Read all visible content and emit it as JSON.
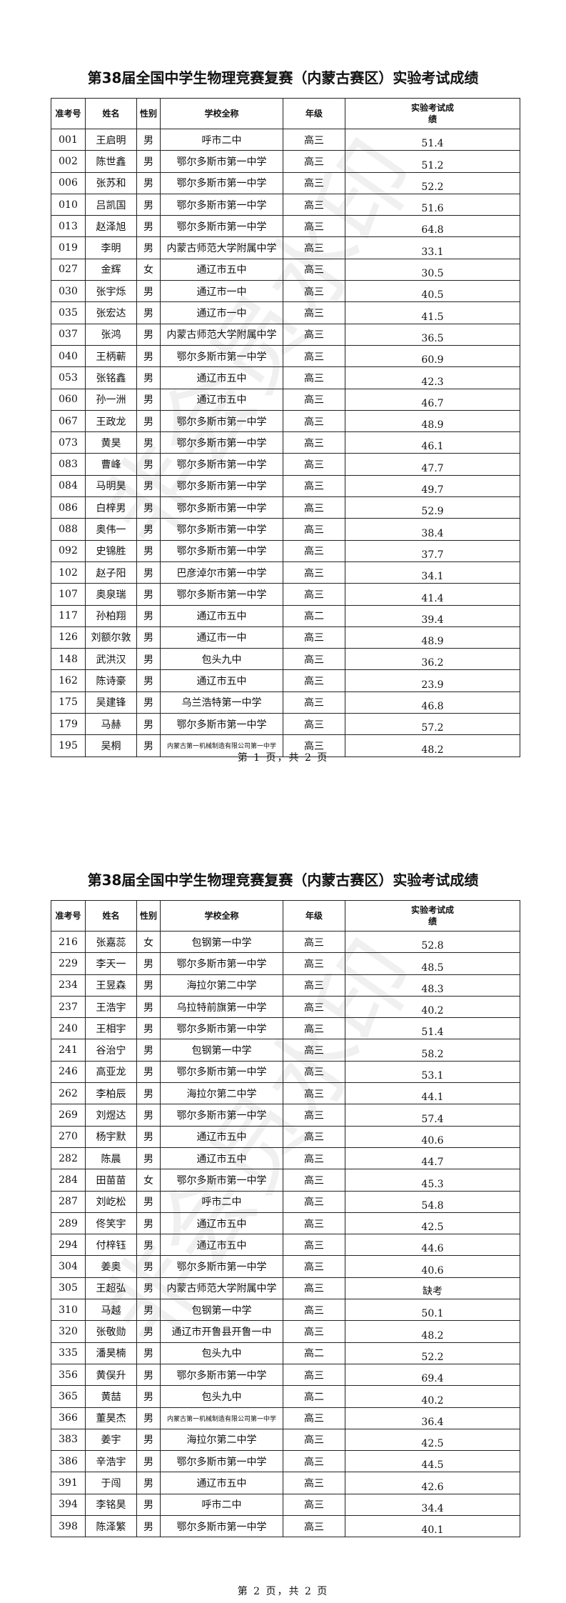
{
  "title": "第38届全国中学生物理竞赛复赛（内蒙古赛区）实验考试成绩",
  "watermark": "非会员水印",
  "headers": [
    "准考号",
    "姓名",
    "性别",
    "学校全称",
    "年级",
    "实验考试成绩"
  ],
  "pages": [
    {
      "footer": "第 1 页，共 2 页",
      "rows": [
        [
          "001",
          "王启明",
          "男",
          "呼市二中",
          "高三",
          "51.4"
        ],
        [
          "002",
          "陈世鑫",
          "男",
          "鄂尔多斯市第一中学",
          "高三",
          "51.2"
        ],
        [
          "006",
          "张苏和",
          "男",
          "鄂尔多斯市第一中学",
          "高三",
          "52.2"
        ],
        [
          "010",
          "吕凯国",
          "男",
          "鄂尔多斯市第一中学",
          "高三",
          "51.6"
        ],
        [
          "013",
          "赵泽旭",
          "男",
          "鄂尔多斯市第一中学",
          "高三",
          "64.8"
        ],
        [
          "019",
          "李明",
          "男",
          "内蒙古师范大学附属中学",
          "高三",
          "33.1"
        ],
        [
          "027",
          "金辉",
          "女",
          "通辽市五中",
          "高三",
          "30.5"
        ],
        [
          "030",
          "张宇烁",
          "男",
          "通辽市一中",
          "高三",
          "40.5"
        ],
        [
          "035",
          "张宏达",
          "男",
          "通辽市一中",
          "高三",
          "41.5"
        ],
        [
          "037",
          "张鸿",
          "男",
          "内蒙古师范大学附属中学",
          "高三",
          "36.5"
        ],
        [
          "040",
          "王柄蕲",
          "男",
          "鄂尔多斯市第一中学",
          "高三",
          "60.9"
        ],
        [
          "053",
          "张铭鑫",
          "男",
          "通辽市五中",
          "高三",
          "42.3"
        ],
        [
          "060",
          "孙一洲",
          "男",
          "通辽市五中",
          "高三",
          "46.7"
        ],
        [
          "067",
          "王政龙",
          "男",
          "鄂尔多斯市第一中学",
          "高三",
          "48.9"
        ],
        [
          "073",
          "黄昊",
          "男",
          "鄂尔多斯市第一中学",
          "高三",
          "46.1"
        ],
        [
          "083",
          "曹峰",
          "男",
          "鄂尔多斯市第一中学",
          "高三",
          "47.7"
        ],
        [
          "084",
          "马明昊",
          "男",
          "鄂尔多斯市第一中学",
          "高三",
          "49.7"
        ],
        [
          "086",
          "白梓男",
          "男",
          "鄂尔多斯市第一中学",
          "高三",
          "52.9"
        ],
        [
          "088",
          "奥伟一",
          "男",
          "鄂尔多斯市第一中学",
          "高三",
          "38.4"
        ],
        [
          "092",
          "史锦胜",
          "男",
          "鄂尔多斯市第一中学",
          "高三",
          "37.7"
        ],
        [
          "102",
          "赵子阳",
          "男",
          "巴彦淖尔市第一中学",
          "高三",
          "34.1"
        ],
        [
          "107",
          "奥泉瑞",
          "男",
          "鄂尔多斯市第一中学",
          "高三",
          "41.4"
        ],
        [
          "117",
          "孙柏翔",
          "男",
          "通辽市五中",
          "高二",
          "39.4"
        ],
        [
          "126",
          "刘额尔敦",
          "男",
          "通辽市一中",
          "高三",
          "48.9"
        ],
        [
          "148",
          "武洪汉",
          "男",
          "包头九中",
          "高三",
          "36.2"
        ],
        [
          "162",
          "陈诗豪",
          "男",
          "通辽市五中",
          "高三",
          "23.9"
        ],
        [
          "175",
          "吴建锋",
          "男",
          "乌兰浩特第一中学",
          "高三",
          "46.8"
        ],
        [
          "179",
          "马赫",
          "男",
          "鄂尔多斯市第一中学",
          "高三",
          "57.2"
        ],
        [
          "195",
          "吴桐",
          "男",
          "内蒙古第一机械制造有限公司第一中学",
          "高三",
          "48.2"
        ]
      ]
    },
    {
      "footer": "第 2 页，共 2 页",
      "rows": [
        [
          "216",
          "张嘉蕊",
          "女",
          "包钢第一中学",
          "高三",
          "52.8"
        ],
        [
          "229",
          "李天一",
          "男",
          "鄂尔多斯市第一中学",
          "高三",
          "48.5"
        ],
        [
          "234",
          "王昱森",
          "男",
          "海拉尔第二中学",
          "高三",
          "48.3"
        ],
        [
          "237",
          "王浩宇",
          "男",
          "乌拉特前旗第一中学",
          "高三",
          "40.2"
        ],
        [
          "240",
          "王相宇",
          "男",
          "鄂尔多斯市第一中学",
          "高三",
          "51.4"
        ],
        [
          "241",
          "谷治宁",
          "男",
          "包钢第一中学",
          "高三",
          "58.2"
        ],
        [
          "246",
          "高亚龙",
          "男",
          "鄂尔多斯市第一中学",
          "高三",
          "53.1"
        ],
        [
          "262",
          "李柏辰",
          "男",
          "海拉尔第二中学",
          "高三",
          "44.1"
        ],
        [
          "269",
          "刘煜达",
          "男",
          "鄂尔多斯市第一中学",
          "高三",
          "57.4"
        ],
        [
          "270",
          "杨宇默",
          "男",
          "通辽市五中",
          "高三",
          "40.6"
        ],
        [
          "282",
          "陈晨",
          "男",
          "通辽市五中",
          "高三",
          "44.7"
        ],
        [
          "284",
          "田苗苗",
          "女",
          "鄂尔多斯市第一中学",
          "高三",
          "45.3"
        ],
        [
          "287",
          "刘屹松",
          "男",
          "呼市二中",
          "高三",
          "54.8"
        ],
        [
          "289",
          "佟笑宇",
          "男",
          "通辽市五中",
          "高三",
          "42.5"
        ],
        [
          "294",
          "付梓钰",
          "男",
          "通辽市五中",
          "高三",
          "44.6"
        ],
        [
          "304",
          "姜奥",
          "男",
          "鄂尔多斯市第一中学",
          "高三",
          "40.6"
        ],
        [
          "305",
          "王超弘",
          "男",
          "内蒙古师范大学附属中学",
          "高三",
          "缺考"
        ],
        [
          "310",
          "马越",
          "男",
          "包钢第一中学",
          "高三",
          "50.1"
        ],
        [
          "320",
          "张敬勋",
          "男",
          "通辽市开鲁县开鲁一中",
          "高三",
          "48.2"
        ],
        [
          "335",
          "潘昊楠",
          "男",
          "包头九中",
          "高二",
          "52.2"
        ],
        [
          "356",
          "黄俣升",
          "男",
          "鄂尔多斯市第一中学",
          "高三",
          "69.4"
        ],
        [
          "365",
          "黄喆",
          "男",
          "包头九中",
          "高二",
          "40.2"
        ],
        [
          "366",
          "董昊杰",
          "男",
          "内蒙古第一机械制造有限公司第一中学",
          "高三",
          "36.4"
        ],
        [
          "383",
          "姜宇",
          "男",
          "海拉尔第二中学",
          "高三",
          "42.5"
        ],
        [
          "386",
          "辛浩宇",
          "男",
          "鄂尔多斯市第一中学",
          "高三",
          "44.5"
        ],
        [
          "391",
          "于闯",
          "男",
          "通辽市五中",
          "高三",
          "42.6"
        ],
        [
          "394",
          "李铭昊",
          "男",
          "呼市二中",
          "高三",
          "34.4"
        ],
        [
          "398",
          "陈泽繁",
          "男",
          "鄂尔多斯市第一中学",
          "高三",
          "40.1"
        ]
      ]
    }
  ]
}
